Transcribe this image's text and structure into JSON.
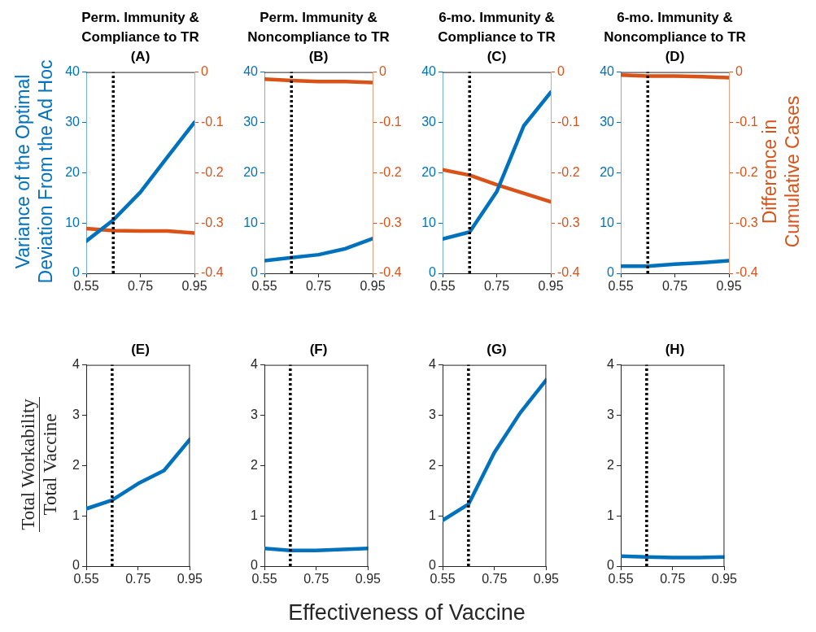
{
  "chart_data": [
    {
      "type": "line",
      "title": "Perm. Immunity & Compliance to TR",
      "subtitle": "(A)",
      "ylabel": "Variance of the Optimal Deviation From the Ad Hoc",
      "x": [
        0.55,
        0.65,
        0.75,
        0.85,
        0.95
      ],
      "xlim": [
        0.55,
        0.95
      ],
      "xticks": [
        0.55,
        0.75,
        0.95
      ],
      "ylim": [
        0,
        40
      ],
      "yticks": [
        0,
        10,
        20,
        30,
        40
      ],
      "y2lim": [
        -0.4,
        0
      ],
      "y2ticks": [
        -0.4,
        -0.3,
        -0.2,
        -0.1,
        0
      ],
      "marker": "none",
      "legend": false,
      "series": [
        {
          "color": "#0072bd",
          "values": [
            6.4,
            10.6,
            16.1,
            23.1,
            30
          ]
        },
        {
          "color": "#d95319",
          "axis": "y2",
          "values": [
            -0.311,
            -0.315,
            -0.316,
            -0.316,
            -0.32
          ]
        }
      ],
      "ref_lines": [
        {
          "axis": "x",
          "value": 0.65,
          "color": "#000000",
          "line_style": "dotted"
        }
      ]
    },
    {
      "type": "line",
      "title": "Perm. Immunity & Noncompliance to TR",
      "subtitle": "(B)",
      "x": [
        0.55,
        0.65,
        0.75,
        0.85,
        0.95
      ],
      "xlim": [
        0.55,
        0.95
      ],
      "xticks": [
        0.55,
        0.75,
        0.95
      ],
      "ylim": [
        0,
        40
      ],
      "yticks": [
        0,
        10,
        20,
        30,
        40
      ],
      "y2lim": [
        -0.4,
        0
      ],
      "y2ticks": [
        -0.4,
        -0.3,
        -0.2,
        -0.1,
        0
      ],
      "marker": "none",
      "legend": false,
      "series": [
        {
          "color": "#0072bd",
          "values": [
            2.5,
            3.1,
            3.7,
            4.9,
            6.9
          ]
        },
        {
          "color": "#d95319",
          "axis": "y2",
          "values": [
            -0.014,
            -0.017,
            -0.019,
            -0.019,
            -0.021
          ]
        }
      ],
      "ref_lines": [
        {
          "axis": "x",
          "value": 0.65,
          "color": "#000000",
          "line_style": "dotted"
        }
      ]
    },
    {
      "type": "line",
      "title": "6-mo. Immunity & Compliance to TR",
      "subtitle": "(C)",
      "x": [
        0.55,
        0.65,
        0.75,
        0.85,
        0.95
      ],
      "xlim": [
        0.55,
        0.95
      ],
      "xticks": [
        0.55,
        0.75,
        0.95
      ],
      "ylim": [
        0,
        40
      ],
      "yticks": [
        0,
        10,
        20,
        30,
        40
      ],
      "y2lim": [
        -0.4,
        0
      ],
      "y2ticks": [
        -0.4,
        -0.3,
        -0.2,
        -0.1,
        0
      ],
      "marker": "none",
      "legend": false,
      "series": [
        {
          "color": "#0072bd",
          "values": [
            6.8,
            8.2,
            16.2,
            29.3,
            36
          ]
        },
        {
          "color": "#d95319",
          "axis": "y2",
          "values": [
            -0.194,
            -0.205,
            -0.224,
            -0.241,
            -0.258
          ]
        }
      ],
      "ref_lines": [
        {
          "axis": "x",
          "value": 0.65,
          "color": "#000000",
          "line_style": "dotted"
        }
      ]
    },
    {
      "type": "line",
      "title": "6-mo. Immunity & Noncompliance to TR",
      "subtitle": "(D)",
      "y2label": "Difference in Cumulative Cases",
      "x": [
        0.55,
        0.65,
        0.75,
        0.85,
        0.95
      ],
      "xlim": [
        0.55,
        0.95
      ],
      "xticks": [
        0.55,
        0.75,
        0.95
      ],
      "ylim": [
        0,
        40
      ],
      "yticks": [
        0,
        10,
        20,
        30,
        40
      ],
      "y2lim": [
        -0.4,
        0
      ],
      "y2ticks": [
        -0.4,
        -0.3,
        -0.2,
        -0.1,
        0
      ],
      "marker": "none",
      "legend": false,
      "series": [
        {
          "color": "#0072bd",
          "values": [
            1.4,
            1.4,
            1.8,
            2.1,
            2.5
          ]
        },
        {
          "color": "#d95319",
          "axis": "y2",
          "values": [
            -0.006,
            -0.008,
            -0.008,
            -0.009,
            -0.011
          ]
        }
      ],
      "ref_lines": [
        {
          "axis": "x",
          "value": 0.65,
          "color": "#000000",
          "line_style": "dotted"
        }
      ]
    },
    {
      "type": "line",
      "title": "(E)",
      "ylabel": "Total Workability\nTotal Vaccine",
      "x": [
        0.55,
        0.65,
        0.75,
        0.85,
        0.95
      ],
      "xlim": [
        0.55,
        0.95
      ],
      "xticks": [
        0.55,
        0.75,
        0.95
      ],
      "ylim": [
        0,
        4
      ],
      "yticks": [
        0,
        1,
        2,
        3,
        4
      ],
      "marker": "none",
      "legend": false,
      "series": [
        {
          "color": "#0072bd",
          "values": [
            1.14,
            1.31,
            1.64,
            1.9,
            2.52
          ]
        }
      ],
      "ref_lines": [
        {
          "axis": "x",
          "value": 0.65,
          "color": "#000000",
          "line_style": "dotted"
        }
      ]
    },
    {
      "type": "line",
      "title": "(F)",
      "xlabel": "Effectiveness of Vaccine",
      "x": [
        0.55,
        0.65,
        0.75,
        0.85,
        0.95
      ],
      "xlim": [
        0.55,
        0.95
      ],
      "xticks": [
        0.55,
        0.75,
        0.95
      ],
      "ylim": [
        0,
        4
      ],
      "yticks": [
        0,
        1,
        2,
        3,
        4
      ],
      "marker": "none",
      "legend": false,
      "series": [
        {
          "color": "#0072bd",
          "values": [
            0.35,
            0.31,
            0.31,
            0.33,
            0.35
          ]
        }
      ],
      "ref_lines": [
        {
          "axis": "x",
          "value": 0.65,
          "color": "#000000",
          "line_style": "dotted"
        }
      ]
    },
    {
      "type": "line",
      "title": "(G)",
      "x": [
        0.55,
        0.65,
        0.75,
        0.85,
        0.95
      ],
      "xlim": [
        0.55,
        0.95
      ],
      "xticks": [
        0.55,
        0.75,
        0.95
      ],
      "ylim": [
        0,
        4
      ],
      "yticks": [
        0,
        1,
        2,
        3,
        4
      ],
      "marker": "none",
      "legend": false,
      "series": [
        {
          "color": "#0072bd",
          "values": [
            0.91,
            1.23,
            2.26,
            3.05,
            3.7
          ]
        }
      ],
      "ref_lines": [
        {
          "axis": "x",
          "value": 0.65,
          "color": "#000000",
          "line_style": "dotted"
        }
      ]
    },
    {
      "type": "line",
      "title": "(H)",
      "x": [
        0.55,
        0.65,
        0.75,
        0.85,
        0.95
      ],
      "xlim": [
        0.55,
        0.95
      ],
      "xticks": [
        0.55,
        0.75,
        0.95
      ],
      "ylim": [
        0,
        4
      ],
      "yticks": [
        0,
        1,
        2,
        3,
        4
      ],
      "marker": "none",
      "legend": false,
      "series": [
        {
          "color": "#0072bd",
          "values": [
            0.2,
            0.18,
            0.17,
            0.17,
            0.18
          ]
        }
      ],
      "ref_lines": [
        {
          "axis": "x",
          "value": 0.65,
          "color": "#000000",
          "line_style": "dotted"
        }
      ]
    }
  ]
}
